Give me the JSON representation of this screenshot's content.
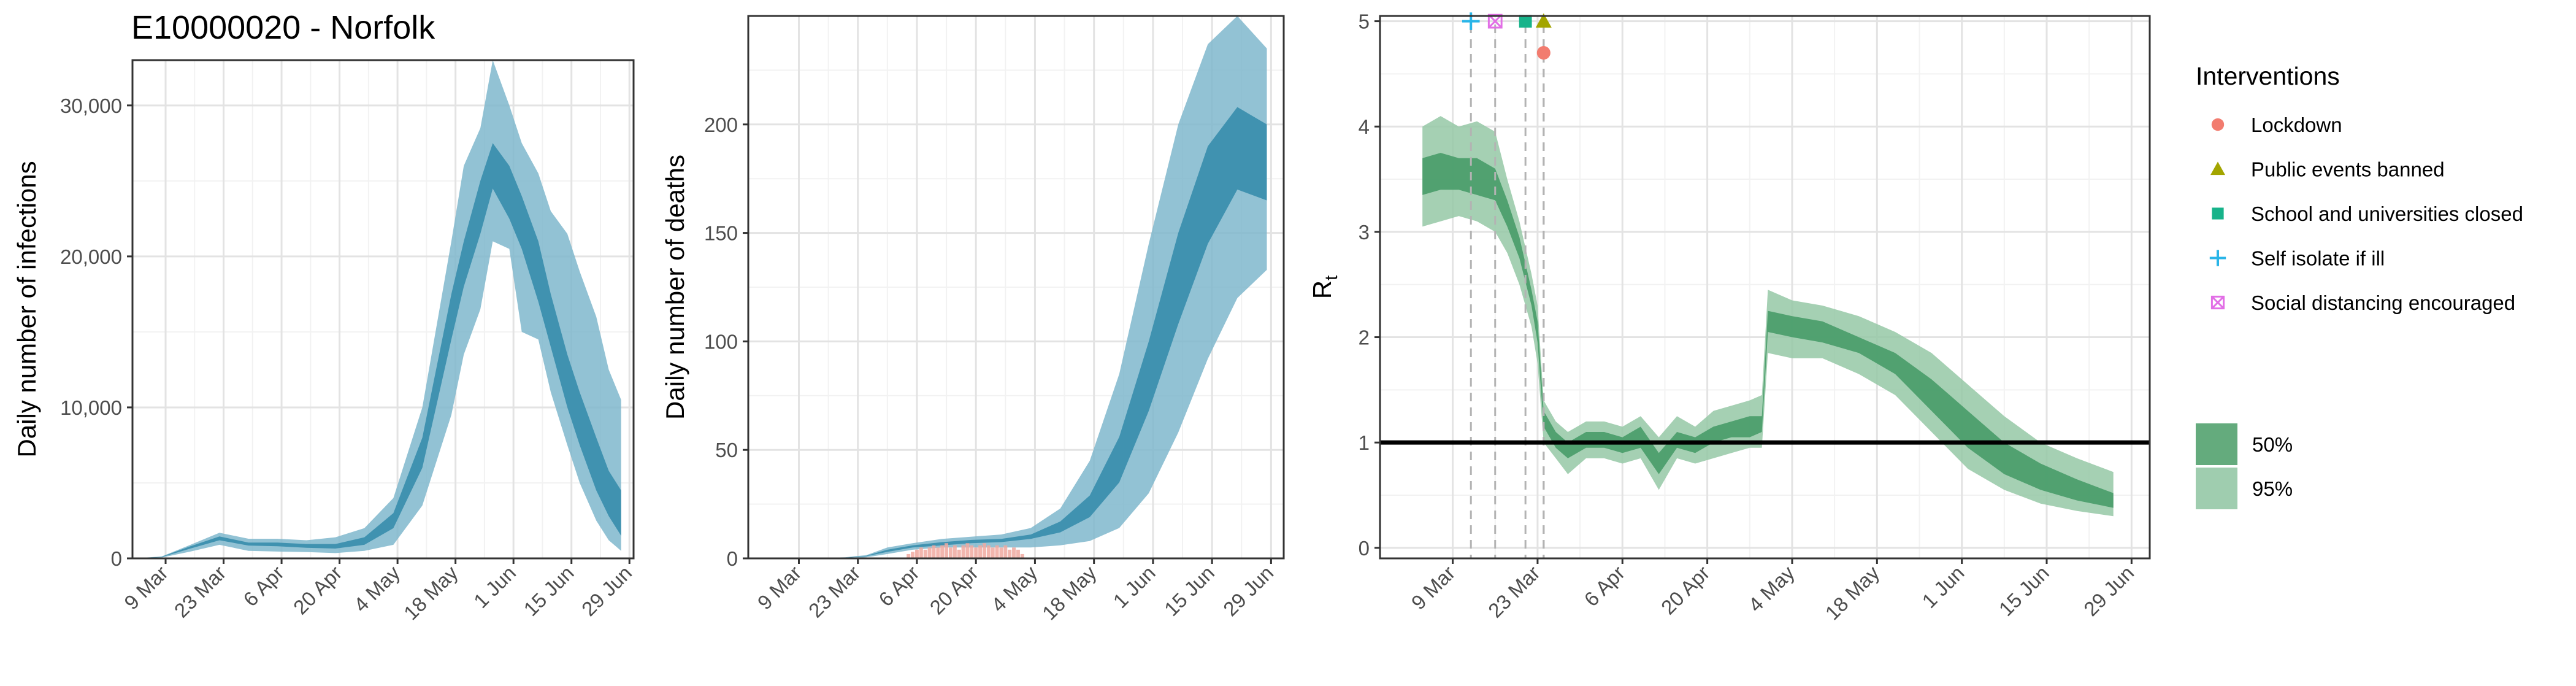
{
  "page": {
    "title": "E10000020 - Norfolk"
  },
  "chart_data": [
    {
      "type": "area",
      "id": "infections",
      "title": "",
      "xlabel": "",
      "ylabel": "Daily number of infections",
      "x_ticks": [
        "9 Mar",
        "23 Mar",
        "6 Apr",
        "20 Apr",
        "4 May",
        "18 May",
        "1 Jun",
        "15 Jun",
        "29 Jun"
      ],
      "x_range": [
        "2020-03-01",
        "2020-06-30"
      ],
      "ylim": [
        0,
        33000
      ],
      "y_ticks": [
        0,
        10000,
        20000,
        30000
      ],
      "y_tick_labels": [
        "0",
        "10,000",
        "20,000",
        "30,000"
      ],
      "grid": true,
      "colors": {
        "band95": "#7fb7cc",
        "band50": "#3c8fae"
      },
      "x": [
        "2020-03-01",
        "2020-03-08",
        "2020-03-15",
        "2020-03-22",
        "2020-03-29",
        "2020-04-05",
        "2020-04-12",
        "2020-04-19",
        "2020-04-26",
        "2020-05-03",
        "2020-05-10",
        "2020-05-17",
        "2020-05-20",
        "2020-05-24",
        "2020-05-27",
        "2020-05-31",
        "2020-06-03",
        "2020-06-07",
        "2020-06-10",
        "2020-06-14",
        "2020-06-17",
        "2020-06-21",
        "2020-06-24",
        "2020-06-27"
      ],
      "series": [
        {
          "name": "95%",
          "lower": [
            0,
            50,
            450,
            900,
            500,
            450,
            420,
            350,
            500,
            900,
            3500,
            9500,
            13500,
            16500,
            21000,
            20500,
            15000,
            14500,
            11000,
            7500,
            5000,
            2500,
            1200,
            500
          ],
          "upper": [
            0,
            120,
            900,
            1700,
            1300,
            1300,
            1200,
            1400,
            2000,
            4000,
            10000,
            21000,
            26000,
            28500,
            33000,
            30000,
            27500,
            25500,
            23000,
            21500,
            19000,
            16000,
            12500,
            10500
          ]
        },
        {
          "name": "50%",
          "lower": [
            0,
            80,
            650,
            1200,
            850,
            800,
            700,
            650,
            900,
            2000,
            6000,
            14500,
            18000,
            21500,
            24500,
            22500,
            20500,
            17000,
            14000,
            10000,
            7500,
            4500,
            2800,
            1500
          ],
          "upper": [
            0,
            100,
            800,
            1450,
            1050,
            1050,
            950,
            950,
            1400,
            3000,
            8000,
            17500,
            21000,
            25000,
            27500,
            26000,
            24000,
            21000,
            17500,
            13500,
            11000,
            8000,
            5800,
            4500
          ]
        }
      ]
    },
    {
      "type": "area",
      "id": "deaths",
      "title": "",
      "xlabel": "",
      "ylabel": "Daily number of deaths",
      "x_ticks": [
        "9 Mar",
        "23 Mar",
        "6 Apr",
        "20 Apr",
        "4 May",
        "18 May",
        "1 Jun",
        "15 Jun",
        "29 Jun"
      ],
      "x_range": [
        "2020-02-26",
        "2020-07-02"
      ],
      "ylim": [
        0,
        250
      ],
      "y_ticks": [
        0,
        50,
        100,
        150,
        200
      ],
      "y_tick_labels": [
        "0",
        "50",
        "100",
        "150",
        "200"
      ],
      "grid": true,
      "colors": {
        "band95": "#7fb7cc",
        "band50": "#3c8fae",
        "observed": "#f0a9a0"
      },
      "x": [
        "2020-03-01",
        "2020-03-10",
        "2020-03-20",
        "2020-03-25",
        "2020-03-30",
        "2020-04-05",
        "2020-04-12",
        "2020-04-19",
        "2020-04-26",
        "2020-05-03",
        "2020-05-10",
        "2020-05-17",
        "2020-05-24",
        "2020-05-31",
        "2020-06-07",
        "2020-06-14",
        "2020-06-21",
        "2020-06-28"
      ],
      "series": [
        {
          "name": "95%",
          "lower": [
            0,
            0,
            0,
            0.5,
            2,
            4,
            5,
            5,
            5,
            5,
            6,
            8,
            14,
            30,
            58,
            92,
            120,
            133
          ],
          "upper": [
            0,
            0,
            0.5,
            1.5,
            5,
            7,
            9,
            10,
            11,
            14,
            23,
            45,
            85,
            145,
            200,
            237,
            250,
            235
          ]
        },
        {
          "name": "50%",
          "lower": [
            0,
            0,
            0.2,
            1,
            3,
            5,
            6,
            7,
            7.5,
            9,
            12,
            19,
            35,
            68,
            108,
            145,
            170,
            165
          ],
          "upper": [
            0,
            0,
            0.3,
            1.2,
            4,
            6,
            7.5,
            8.5,
            9,
            11,
            17,
            29,
            56,
            100,
            150,
            190,
            208,
            200
          ]
        }
      ],
      "observed": {
        "dates": [
          "2020-04-04",
          "2020-04-05",
          "2020-04-06",
          "2020-04-07",
          "2020-04-08",
          "2020-04-09",
          "2020-04-10",
          "2020-04-11",
          "2020-04-12",
          "2020-04-13",
          "2020-04-14",
          "2020-04-15",
          "2020-04-16",
          "2020-04-17",
          "2020-04-18",
          "2020-04-19",
          "2020-04-20",
          "2020-04-21",
          "2020-04-22",
          "2020-04-23",
          "2020-04-24",
          "2020-04-25",
          "2020-04-26",
          "2020-04-27",
          "2020-04-28",
          "2020-04-29",
          "2020-04-30",
          "2020-05-01"
        ],
        "values": [
          2,
          3,
          4,
          5,
          4,
          5,
          6,
          5,
          6,
          7,
          5,
          6,
          4,
          6,
          7,
          6,
          5,
          6,
          7,
          6,
          5,
          6,
          5,
          6,
          4,
          5,
          4,
          2
        ]
      }
    },
    {
      "type": "area",
      "id": "rt",
      "title": "",
      "xlabel": "",
      "ylabel": "Rt",
      "x_ticks": [
        "9 Mar",
        "23 Mar",
        "6 Apr",
        "20 Apr",
        "4 May",
        "18 May",
        "1 Jun",
        "15 Jun",
        "29 Jun"
      ],
      "x_range": [
        "2020-02-26",
        "2020-07-02"
      ],
      "ylim": [
        -0.1,
        5.05
      ],
      "y_ticks": [
        0,
        1,
        2,
        3,
        4,
        5
      ],
      "y_tick_labels": [
        "0",
        "1",
        "2",
        "3",
        "4",
        "5"
      ],
      "grid": true,
      "reference_line": 1,
      "colors": {
        "band95": "#95c8a6",
        "band50": "#4c9e6d",
        "reference_line": "#000000",
        "intervention_line": "#b3b3b3"
      },
      "x": [
        "2020-03-04",
        "2020-03-07",
        "2020-03-10",
        "2020-03-13",
        "2020-03-16",
        "2020-03-18",
        "2020-03-20",
        "2020-03-22",
        "2020-03-23",
        "2020-03-24",
        "2020-03-26",
        "2020-03-28",
        "2020-03-31",
        "2020-04-03",
        "2020-04-06",
        "2020-04-09",
        "2020-04-12",
        "2020-04-15",
        "2020-04-18",
        "2020-04-21",
        "2020-04-24",
        "2020-04-27",
        "2020-04-29",
        "2020-04-30",
        "2020-05-04",
        "2020-05-09",
        "2020-05-15",
        "2020-05-21",
        "2020-05-27",
        "2020-06-02",
        "2020-06-08",
        "2020-06-14",
        "2020-06-20",
        "2020-06-26"
      ],
      "series": [
        {
          "name": "95%",
          "lower": [
            3.05,
            3.1,
            3.15,
            3.1,
            3.0,
            2.8,
            2.5,
            2.1,
            1.75,
            1.0,
            0.85,
            0.7,
            0.85,
            0.85,
            0.8,
            0.85,
            0.55,
            0.85,
            0.8,
            0.85,
            0.9,
            0.95,
            0.95,
            1.85,
            1.8,
            1.8,
            1.65,
            1.45,
            1.1,
            0.75,
            0.55,
            0.42,
            0.35,
            0.3
          ],
          "upper": [
            4.0,
            4.1,
            4.0,
            4.05,
            3.95,
            3.5,
            3.1,
            2.6,
            2.3,
            1.4,
            1.2,
            1.1,
            1.2,
            1.2,
            1.15,
            1.25,
            1.05,
            1.25,
            1.15,
            1.3,
            1.35,
            1.4,
            1.45,
            2.45,
            2.35,
            2.3,
            2.2,
            2.05,
            1.85,
            1.55,
            1.25,
            1.0,
            0.85,
            0.72
          ]
        },
        {
          "name": "50%",
          "lower": [
            3.35,
            3.4,
            3.4,
            3.35,
            3.3,
            3.05,
            2.75,
            2.3,
            1.95,
            1.15,
            0.95,
            0.85,
            0.95,
            0.95,
            0.9,
            0.95,
            0.7,
            0.95,
            0.9,
            1.0,
            1.05,
            1.05,
            1.1,
            2.05,
            2.0,
            1.95,
            1.85,
            1.65,
            1.3,
            0.95,
            0.7,
            0.55,
            0.45,
            0.38
          ],
          "upper": [
            3.7,
            3.75,
            3.7,
            3.7,
            3.6,
            3.3,
            2.95,
            2.45,
            2.15,
            1.3,
            1.1,
            1.0,
            1.1,
            1.1,
            1.05,
            1.15,
            0.9,
            1.1,
            1.05,
            1.15,
            1.2,
            1.25,
            1.25,
            2.25,
            2.2,
            2.15,
            2.0,
            1.85,
            1.6,
            1.3,
            1.0,
            0.8,
            0.65,
            0.52
          ]
        }
      ],
      "interventions": [
        {
          "name": "Self isolate if ill",
          "date": "2020-03-12",
          "marker_y": 5.0,
          "shape": "plus",
          "color": "#29b5e8"
        },
        {
          "name": "Social distancing encouraged",
          "date": "2020-03-16",
          "marker_y": 5.0,
          "shape": "square-x",
          "color": "#e26fe6"
        },
        {
          "name": "School and universities closed",
          "date": "2020-03-21",
          "marker_y": 5.0,
          "shape": "square",
          "color": "#17b38a"
        },
        {
          "name": "Public events banned",
          "date": "2020-03-24",
          "marker_y": 5.0,
          "shape": "triangle",
          "color": "#a3a500"
        },
        {
          "name": "Lockdown",
          "date": "2020-03-24",
          "marker_y": 4.7,
          "shape": "circle",
          "color": "#f27c6f"
        }
      ]
    }
  ],
  "legend": {
    "interventions_title": "Interventions",
    "interventions": [
      {
        "label": "Lockdown",
        "shape": "circle",
        "color": "#f27c6f"
      },
      {
        "label": "Public events banned",
        "shape": "triangle",
        "color": "#a3a500"
      },
      {
        "label": "School and universities closed",
        "shape": "square",
        "color": "#17b38a"
      },
      {
        "label": "Self isolate if ill",
        "shape": "plus",
        "color": "#29b5e8"
      },
      {
        "label": "Social distancing encouraged",
        "shape": "square-x",
        "color": "#e26fe6"
      }
    ],
    "bands": [
      {
        "label": "50%",
        "color": "#64ab7d"
      },
      {
        "label": "95%",
        "color": "#9fcdaf"
      }
    ]
  }
}
